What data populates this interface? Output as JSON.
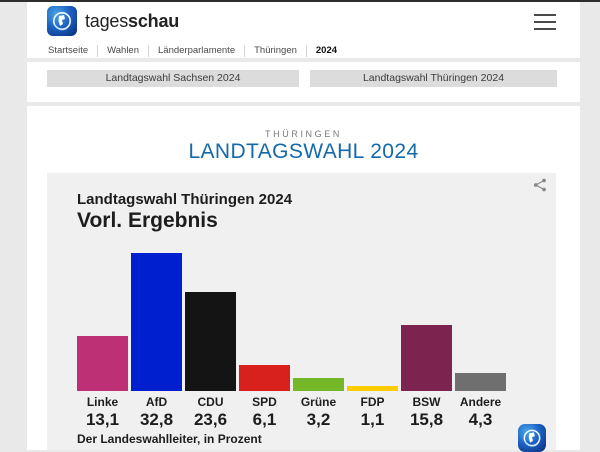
{
  "header": {
    "logo": {
      "text_regular": "tages",
      "text_bold": "schau"
    },
    "breadcrumb": [
      "Startseite",
      "Wahlen",
      "Länderparlamente",
      "Thüringen",
      "2024"
    ]
  },
  "nav_buttons": [
    {
      "label": "Landtagswahl Sachsen 2024"
    },
    {
      "label": "Landtagswahl Thüringen 2024"
    }
  ],
  "page": {
    "kicker": "THÜRINGEN",
    "title": "LANDTAGSWAHL 2024",
    "title_color": "#1569a9"
  },
  "chart_data": {
    "type": "bar",
    "title": "Landtagswahl Thüringen 2024",
    "subtitle": "Vorl. Ergebnis",
    "source": "Der Landeswahlleiter, in Prozent",
    "categories": [
      "Linke",
      "AfD",
      "CDU",
      "SPD",
      "Grüne",
      "FDP",
      "BSW",
      "Andere"
    ],
    "values": [
      13.1,
      32.8,
      23.6,
      6.1,
      3.2,
      1.1,
      15.8,
      4.3
    ],
    "value_labels": [
      "13,1",
      "32,8",
      "23,6",
      "6,1",
      "3,2",
      "1,1",
      "15,8",
      "4,3"
    ],
    "colors": [
      "#be3075",
      "#001fce",
      "#141414",
      "#d8201d",
      "#74b827",
      "#fdcc00",
      "#7d2350",
      "#6f6f6f"
    ],
    "ylim": [
      0,
      33.5
    ],
    "unit": "Prozent",
    "grid": false,
    "legend": false
  }
}
